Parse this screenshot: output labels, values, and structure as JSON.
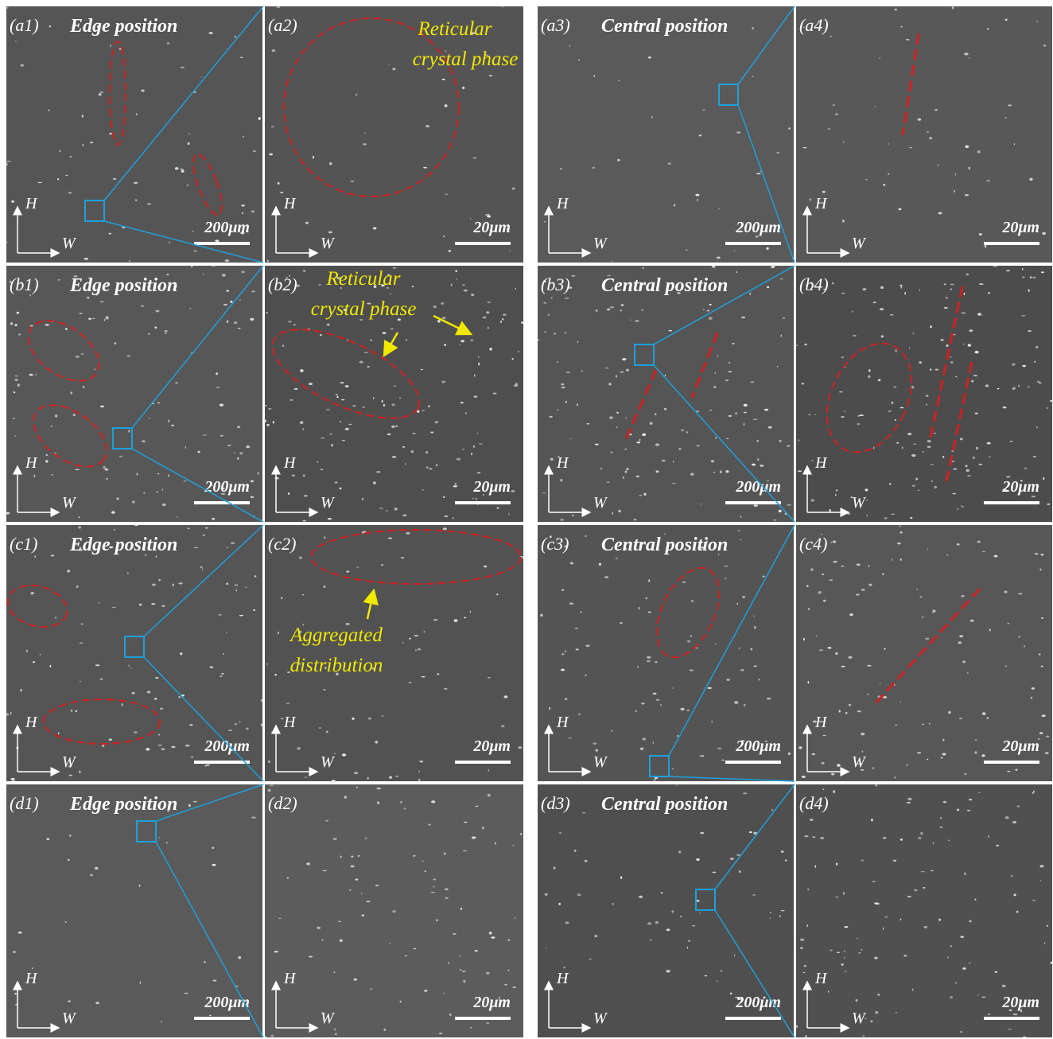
{
  "axis_labels": {
    "h": "H",
    "w": "W"
  },
  "rows": [
    {
      "panels": [
        {
          "label": "(a1)",
          "title": "Edge position",
          "scale": "200μm"
        },
        {
          "label": "(a2)",
          "scale": "20μm",
          "annotation": [
            "Reticular",
            "crystal phase"
          ]
        },
        {
          "label": "(a3)",
          "title": "Central position",
          "scale": "200μm"
        },
        {
          "label": "(a4)",
          "scale": "20μm"
        }
      ]
    },
    {
      "panels": [
        {
          "label": "(b1)",
          "title": "Edge position",
          "scale": "200μm"
        },
        {
          "label": "(b2)",
          "scale": "20μm",
          "annotation": [
            "Reticular",
            "crystal phase"
          ]
        },
        {
          "label": "(b3)",
          "title": "Central position",
          "scale": "200μm"
        },
        {
          "label": "(b4)",
          "scale": "20μm"
        }
      ]
    },
    {
      "panels": [
        {
          "label": "(c1)",
          "title": "Edge position",
          "scale": "200μm"
        },
        {
          "label": "(c2)",
          "scale": "20μm",
          "annotation": [
            "Aggregated",
            "distribution"
          ]
        },
        {
          "label": "(c3)",
          "title": "Central position",
          "scale": "200μm"
        },
        {
          "label": "(c4)",
          "scale": "20μm"
        }
      ]
    },
    {
      "panels": [
        {
          "label": "(d1)",
          "title": "Edge position",
          "scale": "200μm"
        },
        {
          "label": "(d2)",
          "scale": "20μm"
        },
        {
          "label": "(d3)",
          "title": "Central position",
          "scale": "200μm"
        },
        {
          "label": "(d4)",
          "scale": "20μm"
        }
      ]
    }
  ]
}
